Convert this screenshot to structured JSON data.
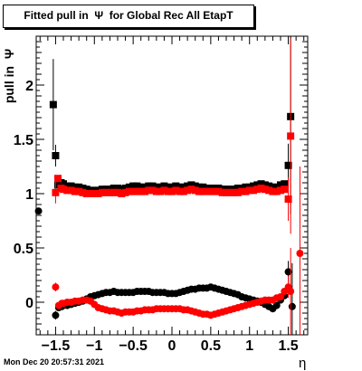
{
  "title": "Fitted pull in  Ψ  for Global Rec All EtapT",
  "ylabel": "pull in  Ψ",
  "xlabel": "η",
  "timestamp": "Mon Dec 20 20:57:31 2021",
  "chart_data": {
    "type": "scatter",
    "xlim": [
      -1.75,
      1.75
    ],
    "ylim": [
      -0.3,
      2.45
    ],
    "x_ticks": [
      -1.5,
      -1,
      -0.5,
      0,
      0.5,
      1,
      1.5
    ],
    "x_tick_labels": [
      "−1.5",
      "−1",
      "−0.5",
      "0",
      "0.5",
      "1",
      "1.5"
    ],
    "y_ticks": [
      0,
      0.5,
      1,
      1.5,
      2
    ],
    "y_tick_labels": [
      "0",
      "0.5",
      "1",
      "1.5",
      "2"
    ],
    "grid": false,
    "series": [
      {
        "marker": "square",
        "color": "#000000",
        "points": [
          {
            "x": -1.53,
            "y": 1.82,
            "err": 0.42
          },
          {
            "x": -1.5,
            "y": 1.35,
            "err": 0.1
          },
          {
            "x": -1.47,
            "y": 1.08
          },
          {
            "x": -1.43,
            "y": 1.1
          },
          {
            "x": -1.4,
            "y": 1.09
          },
          {
            "x": -1.35,
            "y": 1.07
          },
          {
            "x": -1.3,
            "y": 1.07
          },
          {
            "x": -1.25,
            "y": 1.06
          },
          {
            "x": -1.2,
            "y": 1.06
          },
          {
            "x": -1.15,
            "y": 1.05
          },
          {
            "x": -1.1,
            "y": 1.04
          },
          {
            "x": -1.05,
            "y": 1.03
          },
          {
            "x": -1.0,
            "y": 1.03
          },
          {
            "x": -0.95,
            "y": 1.03
          },
          {
            "x": -0.9,
            "y": 1.04
          },
          {
            "x": -0.85,
            "y": 1.04
          },
          {
            "x": -0.8,
            "y": 1.04
          },
          {
            "x": -0.75,
            "y": 1.05
          },
          {
            "x": -0.7,
            "y": 1.05
          },
          {
            "x": -0.65,
            "y": 1.04
          },
          {
            "x": -0.6,
            "y": 1.05
          },
          {
            "x": -0.55,
            "y": 1.06
          },
          {
            "x": -0.5,
            "y": 1.07
          },
          {
            "x": -0.45,
            "y": 1.07
          },
          {
            "x": -0.4,
            "y": 1.06
          },
          {
            "x": -0.35,
            "y": 1.06
          },
          {
            "x": -0.3,
            "y": 1.07
          },
          {
            "x": -0.25,
            "y": 1.07
          },
          {
            "x": -0.2,
            "y": 1.06
          },
          {
            "x": -0.15,
            "y": 1.06
          },
          {
            "x": -0.1,
            "y": 1.07
          },
          {
            "x": -0.05,
            "y": 1.06
          },
          {
            "x": 0.0,
            "y": 1.06
          },
          {
            "x": 0.05,
            "y": 1.07
          },
          {
            "x": 0.1,
            "y": 1.06
          },
          {
            "x": 0.15,
            "y": 1.06
          },
          {
            "x": 0.2,
            "y": 1.07
          },
          {
            "x": 0.25,
            "y": 1.08
          },
          {
            "x": 0.3,
            "y": 1.07
          },
          {
            "x": 0.35,
            "y": 1.06
          },
          {
            "x": 0.4,
            "y": 1.06
          },
          {
            "x": 0.45,
            "y": 1.05
          },
          {
            "x": 0.5,
            "y": 1.05
          },
          {
            "x": 0.55,
            "y": 1.05
          },
          {
            "x": 0.6,
            "y": 1.05
          },
          {
            "x": 0.65,
            "y": 1.04
          },
          {
            "x": 0.7,
            "y": 1.04
          },
          {
            "x": 0.75,
            "y": 1.04
          },
          {
            "x": 0.8,
            "y": 1.04
          },
          {
            "x": 0.85,
            "y": 1.05
          },
          {
            "x": 0.9,
            "y": 1.05
          },
          {
            "x": 0.95,
            "y": 1.06
          },
          {
            "x": 1.0,
            "y": 1.06
          },
          {
            "x": 1.05,
            "y": 1.07
          },
          {
            "x": 1.1,
            "y": 1.08
          },
          {
            "x": 1.15,
            "y": 1.09
          },
          {
            "x": 1.2,
            "y": 1.08
          },
          {
            "x": 1.25,
            "y": 1.07
          },
          {
            "x": 1.3,
            "y": 1.06
          },
          {
            "x": 1.35,
            "y": 1.06
          },
          {
            "x": 1.4,
            "y": 1.08
          },
          {
            "x": 1.45,
            "y": 1.09
          },
          {
            "x": 1.5,
            "y": 1.26,
            "err": 0.2
          },
          {
            "x": 1.53,
            "y": 1.71,
            "err": 0.9
          }
        ]
      },
      {
        "marker": "square",
        "color": "#ff0000",
        "points": [
          {
            "x": -1.5,
            "y": 1.01,
            "err": 0.1
          },
          {
            "x": -1.47,
            "y": 1.14
          },
          {
            "x": -1.43,
            "y": 1.05
          },
          {
            "x": -1.4,
            "y": 1.04
          },
          {
            "x": -1.35,
            "y": 1.03
          },
          {
            "x": -1.3,
            "y": 1.03
          },
          {
            "x": -1.25,
            "y": 1.02
          },
          {
            "x": -1.2,
            "y": 1.02
          },
          {
            "x": -1.15,
            "y": 1.01
          },
          {
            "x": -1.1,
            "y": 1.0
          },
          {
            "x": -1.05,
            "y": 1.0
          },
          {
            "x": -1.0,
            "y": 1.0
          },
          {
            "x": -0.95,
            "y": 1.0
          },
          {
            "x": -0.9,
            "y": 1.01
          },
          {
            "x": -0.85,
            "y": 1.01
          },
          {
            "x": -0.8,
            "y": 1.01
          },
          {
            "x": -0.75,
            "y": 1.01
          },
          {
            "x": -0.7,
            "y": 1.01
          },
          {
            "x": -0.65,
            "y": 1.0
          },
          {
            "x": -0.6,
            "y": 1.01
          },
          {
            "x": -0.55,
            "y": 1.02
          },
          {
            "x": -0.5,
            "y": 1.02
          },
          {
            "x": -0.45,
            "y": 1.02
          },
          {
            "x": -0.4,
            "y": 1.02
          },
          {
            "x": -0.35,
            "y": 1.02
          },
          {
            "x": -0.3,
            "y": 1.03
          },
          {
            "x": -0.25,
            "y": 1.03
          },
          {
            "x": -0.2,
            "y": 1.02
          },
          {
            "x": -0.15,
            "y": 1.02
          },
          {
            "x": -0.1,
            "y": 1.03
          },
          {
            "x": -0.05,
            "y": 1.02
          },
          {
            "x": 0.0,
            "y": 1.02
          },
          {
            "x": 0.05,
            "y": 1.03
          },
          {
            "x": 0.1,
            "y": 1.02
          },
          {
            "x": 0.15,
            "y": 1.02
          },
          {
            "x": 0.2,
            "y": 1.03
          },
          {
            "x": 0.25,
            "y": 1.04
          },
          {
            "x": 0.3,
            "y": 1.03
          },
          {
            "x": 0.35,
            "y": 1.02
          },
          {
            "x": 0.4,
            "y": 1.02
          },
          {
            "x": 0.45,
            "y": 1.02
          },
          {
            "x": 0.5,
            "y": 1.02
          },
          {
            "x": 0.55,
            "y": 1.02
          },
          {
            "x": 0.6,
            "y": 1.02
          },
          {
            "x": 0.65,
            "y": 1.01
          },
          {
            "x": 0.7,
            "y": 1.01
          },
          {
            "x": 0.75,
            "y": 1.01
          },
          {
            "x": 0.8,
            "y": 1.01
          },
          {
            "x": 0.85,
            "y": 1.01
          },
          {
            "x": 0.9,
            "y": 1.02
          },
          {
            "x": 0.95,
            "y": 1.02
          },
          {
            "x": 1.0,
            "y": 1.03
          },
          {
            "x": 1.05,
            "y": 1.03
          },
          {
            "x": 1.1,
            "y": 1.04
          },
          {
            "x": 1.15,
            "y": 1.05
          },
          {
            "x": 1.2,
            "y": 1.04
          },
          {
            "x": 1.25,
            "y": 1.03
          },
          {
            "x": 1.3,
            "y": 1.02
          },
          {
            "x": 1.35,
            "y": 1.02
          },
          {
            "x": 1.4,
            "y": 1.03
          },
          {
            "x": 1.45,
            "y": 1.04
          },
          {
            "x": 1.5,
            "y": 0.95,
            "err": 0.2
          },
          {
            "x": 1.53,
            "y": 1.53,
            "err": 0.9
          }
        ]
      },
      {
        "marker": "circle",
        "color": "#000000",
        "points": [
          {
            "x": -1.72,
            "y": 0.84
          },
          {
            "x": -1.5,
            "y": -0.12,
            "err": 0.04
          },
          {
            "x": -1.46,
            "y": -0.05
          },
          {
            "x": -1.42,
            "y": -0.04
          },
          {
            "x": -1.4,
            "y": -0.03
          },
          {
            "x": -1.35,
            "y": -0.03
          },
          {
            "x": -1.3,
            "y": -0.02
          },
          {
            "x": -1.25,
            "y": -0.01
          },
          {
            "x": -1.2,
            "y": 0.0
          },
          {
            "x": -1.15,
            "y": 0.01
          },
          {
            "x": -1.1,
            "y": 0.03
          },
          {
            "x": -1.05,
            "y": 0.05
          },
          {
            "x": -1.0,
            "y": 0.06
          },
          {
            "x": -0.95,
            "y": 0.07
          },
          {
            "x": -0.9,
            "y": 0.08
          },
          {
            "x": -0.85,
            "y": 0.09
          },
          {
            "x": -0.8,
            "y": 0.09
          },
          {
            "x": -0.75,
            "y": 0.1
          },
          {
            "x": -0.7,
            "y": 0.09
          },
          {
            "x": -0.65,
            "y": 0.09
          },
          {
            "x": -0.6,
            "y": 0.09
          },
          {
            "x": -0.55,
            "y": 0.09
          },
          {
            "x": -0.5,
            "y": 0.09
          },
          {
            "x": -0.45,
            "y": 0.1
          },
          {
            "x": -0.4,
            "y": 0.1
          },
          {
            "x": -0.35,
            "y": 0.1
          },
          {
            "x": -0.3,
            "y": 0.1
          },
          {
            "x": -0.25,
            "y": 0.09
          },
          {
            "x": -0.2,
            "y": 0.09
          },
          {
            "x": -0.15,
            "y": 0.09
          },
          {
            "x": -0.1,
            "y": 0.09
          },
          {
            "x": -0.05,
            "y": 0.08
          },
          {
            "x": 0.0,
            "y": 0.08
          },
          {
            "x": 0.05,
            "y": 0.08
          },
          {
            "x": 0.1,
            "y": 0.09
          },
          {
            "x": 0.15,
            "y": 0.1
          },
          {
            "x": 0.2,
            "y": 0.11
          },
          {
            "x": 0.25,
            "y": 0.12
          },
          {
            "x": 0.3,
            "y": 0.12
          },
          {
            "x": 0.35,
            "y": 0.13
          },
          {
            "x": 0.4,
            "y": 0.13
          },
          {
            "x": 0.45,
            "y": 0.13
          },
          {
            "x": 0.5,
            "y": 0.14
          },
          {
            "x": 0.55,
            "y": 0.13
          },
          {
            "x": 0.6,
            "y": 0.12
          },
          {
            "x": 0.65,
            "y": 0.11
          },
          {
            "x": 0.7,
            "y": 0.1
          },
          {
            "x": 0.75,
            "y": 0.09
          },
          {
            "x": 0.8,
            "y": 0.08
          },
          {
            "x": 0.85,
            "y": 0.07
          },
          {
            "x": 0.9,
            "y": 0.05
          },
          {
            "x": 0.95,
            "y": 0.04
          },
          {
            "x": 1.0,
            "y": 0.03
          },
          {
            "x": 1.05,
            "y": 0.02
          },
          {
            "x": 1.1,
            "y": 0.01
          },
          {
            "x": 1.15,
            "y": 0.0
          },
          {
            "x": 1.2,
            "y": -0.02
          },
          {
            "x": 1.25,
            "y": -0.04
          },
          {
            "x": 1.3,
            "y": -0.06
          },
          {
            "x": 1.35,
            "y": -0.03
          },
          {
            "x": 1.4,
            "y": 0.02
          },
          {
            "x": 1.45,
            "y": 0.06
          },
          {
            "x": 1.5,
            "y": 0.28,
            "err": 0.1
          },
          {
            "x": 1.55,
            "y": -0.04,
            "err": 0.4
          }
        ]
      },
      {
        "marker": "circle",
        "color": "#ff0000",
        "points": [
          {
            "x": -1.5,
            "y": 0.14,
            "err": 0.04
          },
          {
            "x": -1.46,
            "y": -0.03
          },
          {
            "x": -1.42,
            "y": -0.01
          },
          {
            "x": -1.4,
            "y": -0.01
          },
          {
            "x": -1.35,
            "y": 0.0
          },
          {
            "x": -1.3,
            "y": 0.0
          },
          {
            "x": -1.25,
            "y": 0.01
          },
          {
            "x": -1.2,
            "y": 0.01
          },
          {
            "x": -1.15,
            "y": 0.02
          },
          {
            "x": -1.1,
            "y": 0.02
          },
          {
            "x": -1.05,
            "y": 0.01
          },
          {
            "x": -1.0,
            "y": -0.02
          },
          {
            "x": -0.95,
            "y": -0.05
          },
          {
            "x": -0.9,
            "y": -0.06
          },
          {
            "x": -0.85,
            "y": -0.07
          },
          {
            "x": -0.8,
            "y": -0.08
          },
          {
            "x": -0.75,
            "y": -0.08
          },
          {
            "x": -0.7,
            "y": -0.09
          },
          {
            "x": -0.65,
            "y": -0.1
          },
          {
            "x": -0.6,
            "y": -0.09
          },
          {
            "x": -0.55,
            "y": -0.09
          },
          {
            "x": -0.5,
            "y": -0.09
          },
          {
            "x": -0.45,
            "y": -0.08
          },
          {
            "x": -0.4,
            "y": -0.08
          },
          {
            "x": -0.35,
            "y": -0.07
          },
          {
            "x": -0.3,
            "y": -0.07
          },
          {
            "x": -0.25,
            "y": -0.07
          },
          {
            "x": -0.2,
            "y": -0.06
          },
          {
            "x": -0.15,
            "y": -0.06
          },
          {
            "x": -0.1,
            "y": -0.06
          },
          {
            "x": -0.05,
            "y": -0.06
          },
          {
            "x": 0.0,
            "y": -0.06
          },
          {
            "x": 0.05,
            "y": -0.06
          },
          {
            "x": 0.1,
            "y": -0.06
          },
          {
            "x": 0.15,
            "y": -0.07
          },
          {
            "x": 0.2,
            "y": -0.07
          },
          {
            "x": 0.25,
            "y": -0.08
          },
          {
            "x": 0.3,
            "y": -0.09
          },
          {
            "x": 0.35,
            "y": -0.1
          },
          {
            "x": 0.4,
            "y": -0.11
          },
          {
            "x": 0.45,
            "y": -0.11
          },
          {
            "x": 0.5,
            "y": -0.12
          },
          {
            "x": 0.55,
            "y": -0.11
          },
          {
            "x": 0.6,
            "y": -0.1
          },
          {
            "x": 0.65,
            "y": -0.09
          },
          {
            "x": 0.7,
            "y": -0.08
          },
          {
            "x": 0.75,
            "y": -0.07
          },
          {
            "x": 0.8,
            "y": -0.06
          },
          {
            "x": 0.85,
            "y": -0.05
          },
          {
            "x": 0.9,
            "y": -0.04
          },
          {
            "x": 0.95,
            "y": -0.03
          },
          {
            "x": 1.0,
            "y": -0.02
          },
          {
            "x": 1.05,
            "y": -0.01
          },
          {
            "x": 1.1,
            "y": 0.0
          },
          {
            "x": 1.15,
            "y": 0.01
          },
          {
            "x": 1.2,
            "y": 0.02
          },
          {
            "x": 1.25,
            "y": 0.02
          },
          {
            "x": 1.3,
            "y": 0.02
          },
          {
            "x": 1.35,
            "y": 0.04
          },
          {
            "x": 1.4,
            "y": 0.05
          },
          {
            "x": 1.45,
            "y": 0.1
          },
          {
            "x": 1.5,
            "y": 0.14,
            "err": 0.1
          },
          {
            "x": 1.53,
            "y": 0.1,
            "err": 0.4
          },
          {
            "x": 1.65,
            "y": 0.45,
            "err": 0.8
          }
        ]
      }
    ]
  }
}
